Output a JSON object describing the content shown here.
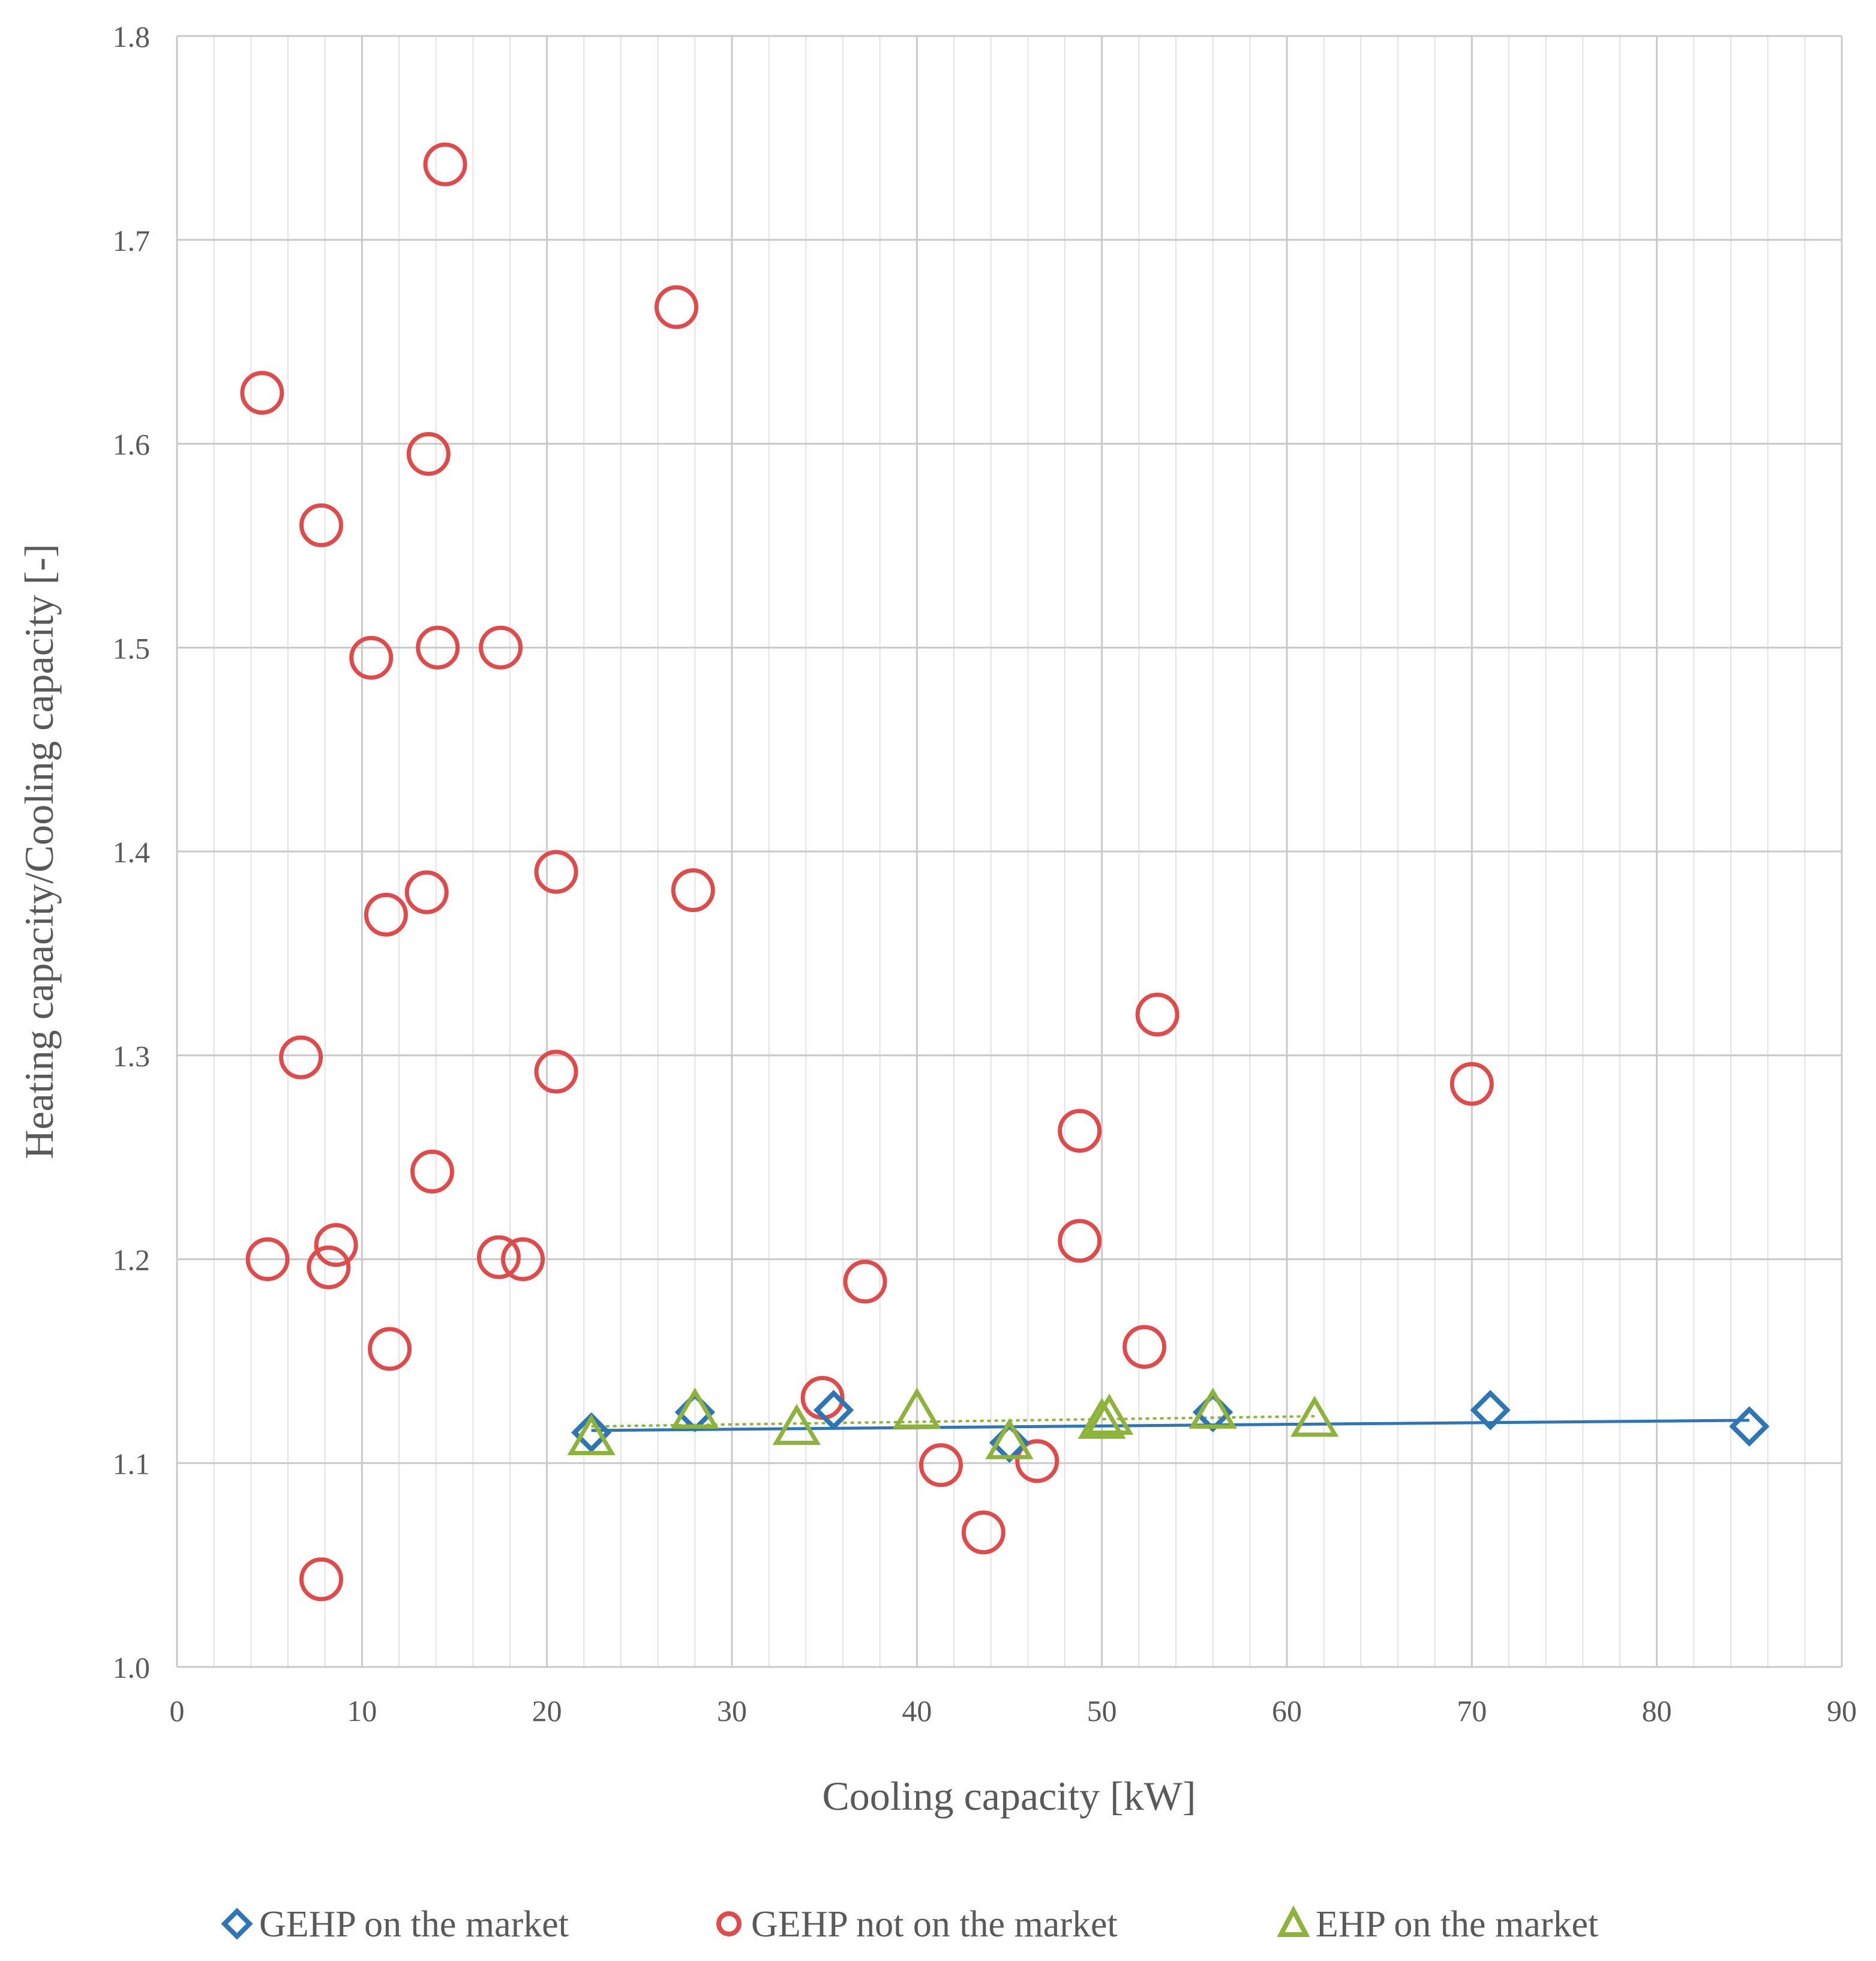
{
  "chart_data": {
    "type": "scatter",
    "title": "",
    "xlabel": "Cooling capacity [kW]",
    "ylabel": "Heating capacity/Cooling capacity [-]",
    "xlim": [
      0,
      90
    ],
    "ylim": [
      1.0,
      1.8
    ],
    "x_major_step": 10,
    "x_minor_step": 2,
    "y_major_step": 0.1,
    "x_tick_labels": [
      "0",
      "10",
      "20",
      "30",
      "40",
      "50",
      "60",
      "70",
      "80",
      "90"
    ],
    "y_tick_labels": [
      "1.0",
      "1.1",
      "1.2",
      "1.3",
      "1.4",
      "1.5",
      "1.6",
      "1.7",
      "1.8"
    ],
    "grid": true,
    "legend_position": "bottom",
    "series": [
      {
        "name": "GEHP on the market",
        "marker": "diamond",
        "color": "#2E75B6",
        "points": [
          {
            "x": 22.4,
            "y": 1.115
          },
          {
            "x": 28.0,
            "y": 1.125
          },
          {
            "x": 35.5,
            "y": 1.126
          },
          {
            "x": 45.0,
            "y": 1.11
          },
          {
            "x": 56.0,
            "y": 1.125
          },
          {
            "x": 71.0,
            "y": 1.126
          },
          {
            "x": 85.0,
            "y": 1.118
          }
        ],
        "trendline": {
          "x": [
            22.4,
            85.0
          ],
          "y": [
            1.116,
            1.121
          ]
        }
      },
      {
        "name": "GEHP not on the market",
        "marker": "circle",
        "color": "#E04A4A",
        "points": [
          {
            "x": 14.5,
            "y": 1.737
          },
          {
            "x": 27.0,
            "y": 1.667
          },
          {
            "x": 4.6,
            "y": 1.625
          },
          {
            "x": 13.6,
            "y": 1.595
          },
          {
            "x": 7.8,
            "y": 1.56
          },
          {
            "x": 10.5,
            "y": 1.495
          },
          {
            "x": 14.1,
            "y": 1.5
          },
          {
            "x": 17.5,
            "y": 1.5
          },
          {
            "x": 20.5,
            "y": 1.39
          },
          {
            "x": 13.5,
            "y": 1.38
          },
          {
            "x": 27.9,
            "y": 1.381
          },
          {
            "x": 11.3,
            "y": 1.369
          },
          {
            "x": 53.0,
            "y": 1.32
          },
          {
            "x": 6.7,
            "y": 1.299
          },
          {
            "x": 20.5,
            "y": 1.292
          },
          {
            "x": 70.0,
            "y": 1.286
          },
          {
            "x": 48.8,
            "y": 1.263
          },
          {
            "x": 13.8,
            "y": 1.243
          },
          {
            "x": 4.9,
            "y": 1.2
          },
          {
            "x": 8.6,
            "y": 1.207
          },
          {
            "x": 8.2,
            "y": 1.196
          },
          {
            "x": 17.4,
            "y": 1.201
          },
          {
            "x": 18.7,
            "y": 1.2
          },
          {
            "x": 48.8,
            "y": 1.209
          },
          {
            "x": 37.2,
            "y": 1.189
          },
          {
            "x": 11.5,
            "y": 1.156
          },
          {
            "x": 52.3,
            "y": 1.157
          },
          {
            "x": 34.9,
            "y": 1.132
          },
          {
            "x": 41.3,
            "y": 1.099
          },
          {
            "x": 46.5,
            "y": 1.101
          },
          {
            "x": 43.6,
            "y": 1.066
          },
          {
            "x": 7.8,
            "y": 1.043
          }
        ]
      },
      {
        "name": "EHP on the market",
        "marker": "triangle",
        "color": "#8DB33A",
        "points": [
          {
            "x": 22.4,
            "y": 1.112
          },
          {
            "x": 28.0,
            "y": 1.125
          },
          {
            "x": 33.5,
            "y": 1.117
          },
          {
            "x": 40.0,
            "y": 1.125
          },
          {
            "x": 45.0,
            "y": 1.11
          },
          {
            "x": 50.0,
            "y": 1.12
          },
          {
            "x": 50.4,
            "y": 1.122
          },
          {
            "x": 56.0,
            "y": 1.125
          },
          {
            "x": 61.5,
            "y": 1.121
          }
        ],
        "trendline": {
          "x": [
            22.4,
            61.5
          ],
          "y": [
            1.118,
            1.123
          ]
        }
      }
    ]
  }
}
